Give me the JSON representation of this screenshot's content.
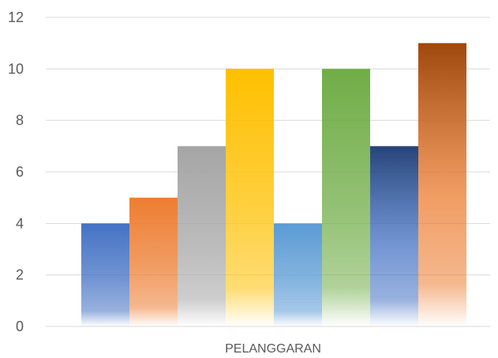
{
  "chart_data": {
    "type": "bar",
    "categories": [
      "PELANGGARAN"
    ],
    "series": [
      {
        "values": [
          4
        ],
        "color": "#4472c4"
      },
      {
        "values": [
          5
        ],
        "color": "#ed7d31"
      },
      {
        "values": [
          7
        ],
        "color": "#a5a5a5"
      },
      {
        "values": [
          10
        ],
        "color": "#ffc000"
      },
      {
        "values": [
          4
        ],
        "color": "#5b9bd5"
      },
      {
        "values": [
          10
        ],
        "color": "#70ad47"
      },
      {
        "values": [
          7
        ],
        "color": "#264478"
      },
      {
        "values": [
          11
        ],
        "color": "#9e480e"
      }
    ],
    "series_bottom_colors": [
      "#4472c4",
      "#ed7d31",
      "#a5a5a5",
      "#ffc000",
      "#5b9bd5",
      "#70ad47",
      "#4472c4",
      "#ed7d31"
    ],
    "yticks": [
      "0",
      "2",
      "4",
      "6",
      "8",
      "10",
      "12"
    ],
    "ylim": [
      0,
      12
    ],
    "grid": true,
    "legend": "none"
  }
}
